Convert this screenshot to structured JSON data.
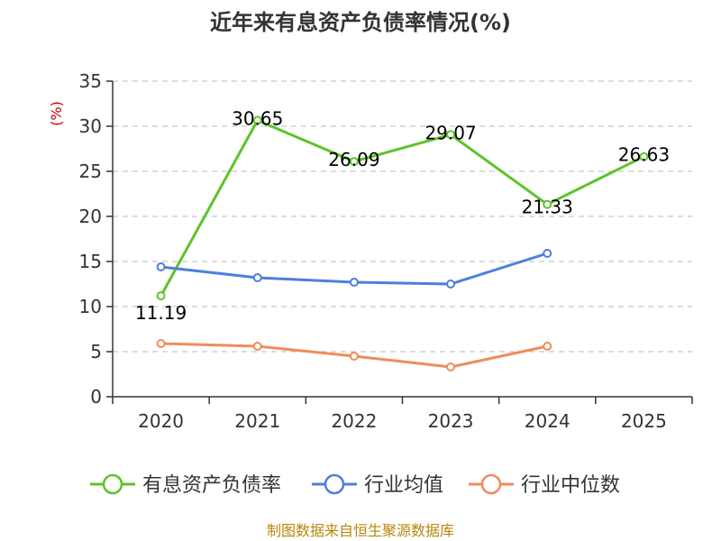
{
  "chart_data": {
    "type": "line",
    "title": "近年来有息资产负债率情况(%)",
    "ylabel": "(%)",
    "xlabel": "",
    "ylim": [
      0,
      35
    ],
    "yticks": [
      0,
      5,
      10,
      15,
      20,
      25,
      30,
      35
    ],
    "categories": [
      "2020",
      "2021",
      "2022",
      "2023",
      "2024",
      "2025"
    ],
    "grid": true,
    "legend_position": "bottom",
    "series": [
      {
        "name": "有息资产负债率",
        "color": "#5cc42a",
        "values": [
          11.19,
          30.65,
          26.09,
          29.07,
          21.33,
          26.63
        ],
        "labels": [
          "11.19",
          "30.65",
          "26.09",
          "29.07",
          "21.33",
          "26.63"
        ]
      },
      {
        "name": "行业均值",
        "color": "#4e7fdc",
        "values": [
          14.4,
          13.2,
          12.7,
          12.5,
          15.9,
          null
        ]
      },
      {
        "name": "行业中位数",
        "color": "#f08c5a",
        "values": [
          5.9,
          5.6,
          4.5,
          3.3,
          5.6,
          null
        ]
      }
    ],
    "source": "制图数据来自恒生聚源数据库"
  }
}
